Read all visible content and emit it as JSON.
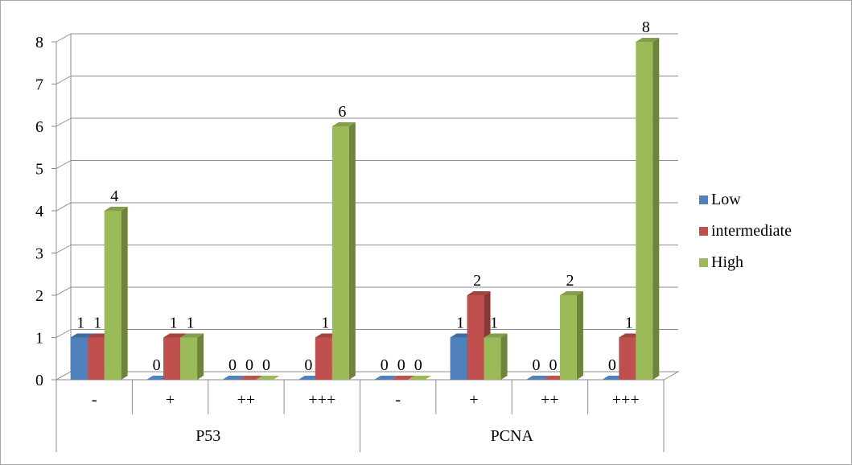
{
  "chart_data": {
    "type": "bar",
    "style": "3d-clustered-column",
    "groups": [
      {
        "label": "P53",
        "categories": [
          "-",
          "+",
          "++",
          "+++"
        ]
      },
      {
        "label": "PCNA",
        "categories": [
          "-",
          "+",
          "++",
          "+++"
        ]
      }
    ],
    "categories": [
      "-",
      "+",
      "++",
      "+++",
      "-",
      "+",
      "++",
      "+++"
    ],
    "series": [
      {
        "name": "Low",
        "color": "#4f81bd",
        "values": [
          1,
          0,
          0,
          0,
          0,
          1,
          0,
          0
        ]
      },
      {
        "name": "intermediate",
        "color": "#c0504d",
        "values": [
          1,
          1,
          0,
          1,
          0,
          2,
          0,
          1
        ]
      },
      {
        "name": "High",
        "color": "#9bbb59",
        "values": [
          4,
          1,
          0,
          6,
          0,
          1,
          2,
          8
        ]
      }
    ],
    "ylim": [
      0,
      8
    ],
    "yticks": [
      "0",
      "1",
      "2",
      "3",
      "4",
      "5",
      "6",
      "7",
      "8"
    ],
    "grid": true,
    "data_labels": true,
    "legend": "right"
  }
}
